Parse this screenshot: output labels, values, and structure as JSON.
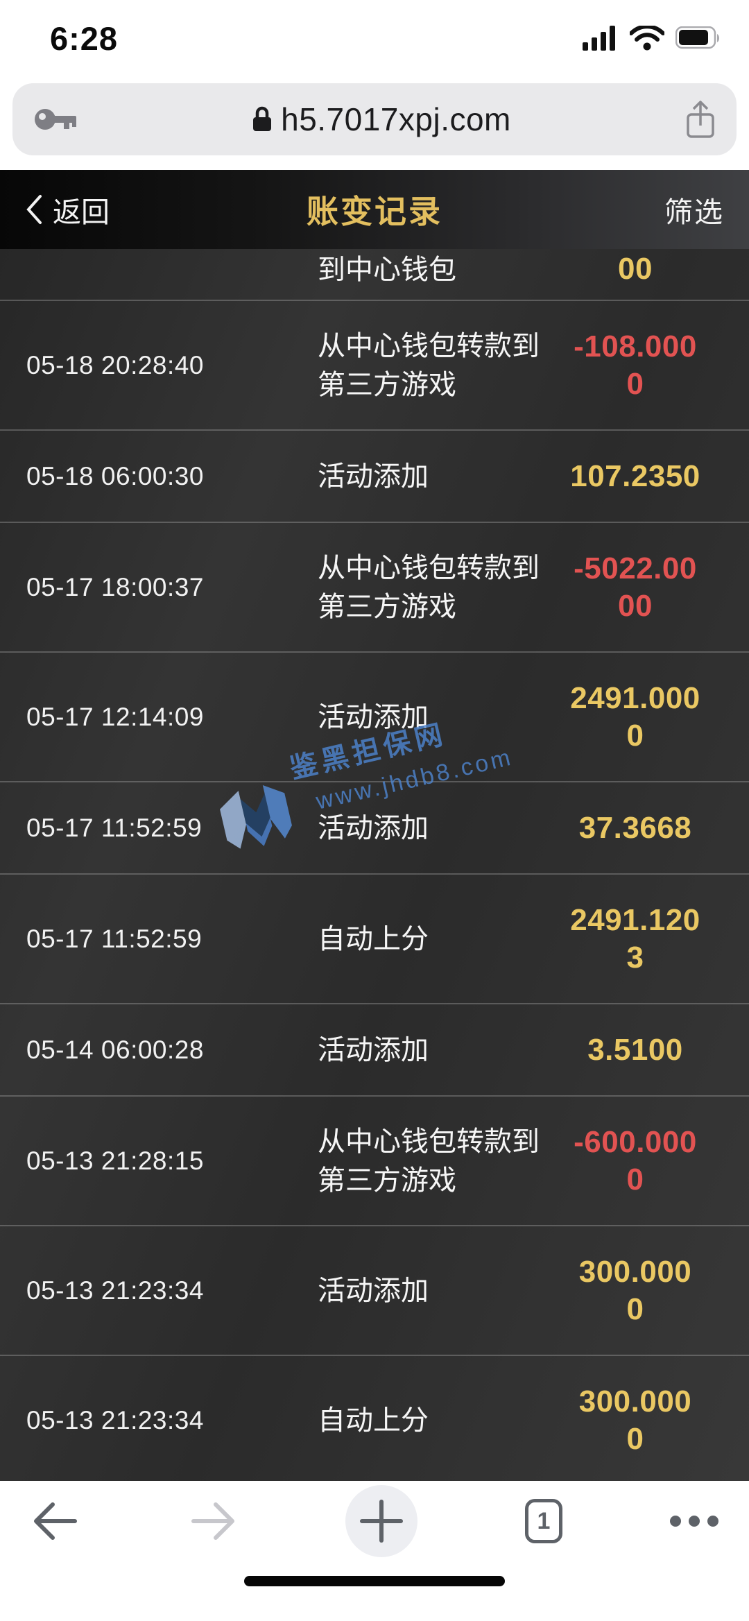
{
  "status_bar": {
    "time": "6:28"
  },
  "browser": {
    "url": "h5.7017xpj.com",
    "tab_count": "1"
  },
  "app_header": {
    "back_label": "返回",
    "title": "账变记录",
    "filter_label": "筛选"
  },
  "watermark": {
    "site_name": "鉴黑担保网",
    "site_url": "www.jhdb8.com"
  },
  "list": {
    "partial_row": {
      "description_tail": "到中心钱包",
      "amount_tail": "00",
      "negative": false
    },
    "rows": [
      {
        "time": "05-18 20:28:40",
        "description": "从中心钱包转款到第三方游戏",
        "amount": "-108.0000",
        "amount_lines": [
          "-108.000",
          "0"
        ],
        "negative": true
      },
      {
        "time": "05-18 06:00:30",
        "description": "活动添加",
        "amount": "107.2350",
        "amount_lines": [
          "107.2350"
        ],
        "negative": false
      },
      {
        "time": "05-17 18:00:37",
        "description": "从中心钱包转款到第三方游戏",
        "amount": "-5022.0000",
        "amount_lines": [
          "-5022.00",
          "00"
        ],
        "negative": true
      },
      {
        "time": "05-17 12:14:09",
        "description": "活动添加",
        "amount": "2491.0000",
        "amount_lines": [
          "2491.000",
          "0"
        ],
        "negative": false
      },
      {
        "time": "05-17 11:52:59",
        "description": "活动添加",
        "amount": "37.3668",
        "amount_lines": [
          "37.3668"
        ],
        "negative": false
      },
      {
        "time": "05-17 11:52:59",
        "description": "自动上分",
        "amount": "2491.1203",
        "amount_lines": [
          "2491.120",
          "3"
        ],
        "negative": false
      },
      {
        "time": "05-14 06:00:28",
        "description": "活动添加",
        "amount": "3.5100",
        "amount_lines": [
          "3.5100"
        ],
        "negative": false
      },
      {
        "time": "05-13 21:28:15",
        "description": "从中心钱包转款到第三方游戏",
        "amount": "-600.0000",
        "amount_lines": [
          "-600.000",
          "0"
        ],
        "negative": true
      },
      {
        "time": "05-13 21:23:34",
        "description": "活动添加",
        "amount": "300.0000",
        "amount_lines": [
          "300.000",
          "0"
        ],
        "negative": false
      },
      {
        "time": "05-13 21:23:34",
        "description": "自动上分",
        "amount": "300.0000",
        "amount_lines": [
          "300.000",
          "0"
        ],
        "negative": false
      }
    ]
  },
  "colors": {
    "amount_positive": "#eac863",
    "amount_negative": "#e25352",
    "title_gold": "#e3bf5f",
    "watermark_blue": "#4e86d2"
  },
  "icons": {
    "left_of_url": "key-icon",
    "in_url": "lock-icon",
    "right_of_url": "share-icon",
    "status": [
      "cellular-icon",
      "wifi-icon",
      "battery-icon"
    ],
    "toolbar": [
      "back-arrow-icon",
      "forward-arrow-icon",
      "plus-icon",
      "tabs-icon",
      "more-dots-icon"
    ]
  }
}
